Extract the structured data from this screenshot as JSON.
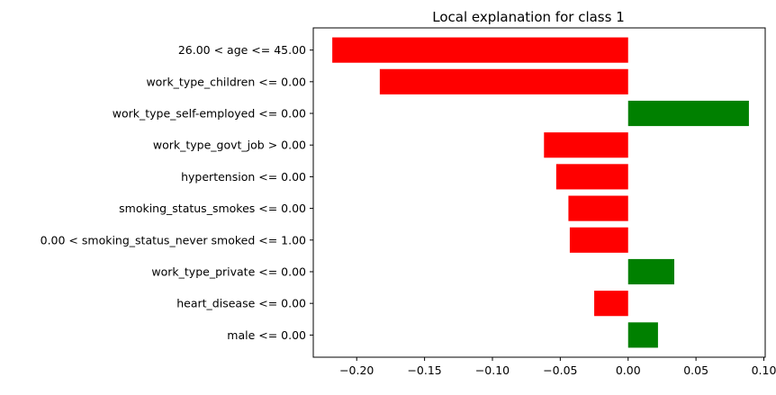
{
  "chart_data": {
    "type": "bar",
    "orientation": "horizontal",
    "title": "Local explanation for class 1",
    "xlabel": "",
    "ylabel": "",
    "categories": [
      "26.00 < age <= 45.00",
      "work_type_children <= 0.00",
      "work_type_self-employed <= 0.00",
      "work_type_govt_job > 0.00",
      "hypertension <= 0.00",
      "smoking_status_smokes <= 0.00",
      "0.00 < smoking_status_never smoked <= 1.00",
      "work_type_private <= 0.00",
      "heart_disease <= 0.00",
      "male <= 0.00"
    ],
    "values": [
      -0.218,
      -0.183,
      0.089,
      -0.062,
      -0.053,
      -0.044,
      -0.043,
      0.034,
      -0.025,
      0.022
    ],
    "xlim": [
      -0.232,
      0.101
    ],
    "xticks": [
      -0.2,
      -0.15,
      -0.1,
      -0.05,
      0.0,
      0.05,
      0.1
    ],
    "xtick_labels": [
      "−0.20",
      "−0.15",
      "−0.10",
      "−0.05",
      "0.00",
      "0.05",
      "0.10"
    ],
    "grid": false,
    "colors": {
      "negative": "#ff0000",
      "positive": "#008000",
      "axis": "#000000",
      "background": "#ffffff"
    }
  }
}
